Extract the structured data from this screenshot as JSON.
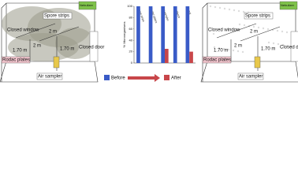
{
  "rooms": [
    {
      "nebulizer": "Nebulizer",
      "spore_strips": "Spore strips",
      "closed_window": "Closed window",
      "closed_door": "Closed door",
      "rodac_plates": "Rodac plates",
      "air_sampler": "Air sampler",
      "distances": [
        "2 m",
        "2 m",
        "1.70 m",
        "1.70 m"
      ]
    },
    {
      "nebulizer": "Nebulizer",
      "spore_strips": "Spore strips",
      "closed_window": "Closed window",
      "closed_door": "Closed door",
      "rodac_plates": "Rodac plates",
      "air_sampler": "Air sampler",
      "distances": [
        "2 m",
        "2 m",
        "1.70 m",
        "1.70 m"
      ]
    }
  ],
  "chart_data": {
    "type": "bar",
    "y_label": "% Microorganisms",
    "categories": [
      "Spore strips",
      "Rodac plates",
      "Air sampler",
      "Surfaces",
      "Fungi"
    ],
    "series": [
      {
        "name": "Before",
        "color": "#3a5bc7",
        "values": [
          100,
          100,
          100,
          100,
          100
        ]
      },
      {
        "name": "After",
        "color": "#c8464a",
        "values": [
          0,
          0,
          25,
          0,
          20
        ]
      }
    ],
    "ylim": [
      0,
      100
    ],
    "yticks": [
      0,
      20,
      40,
      60,
      80,
      100
    ]
  }
}
